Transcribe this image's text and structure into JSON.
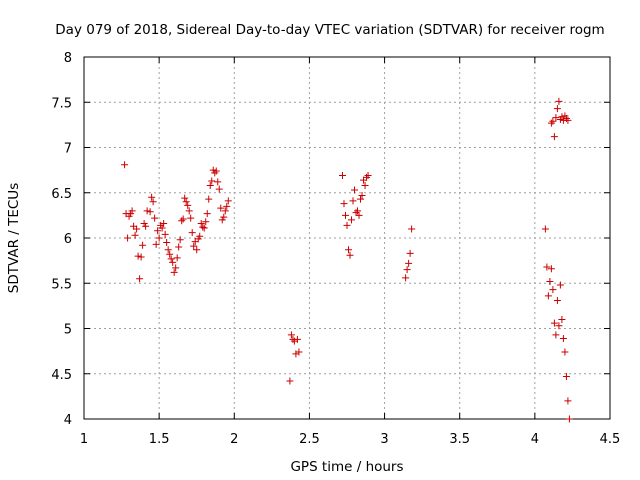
{
  "chart_data": {
    "type": "scatter",
    "title": "Day 079 of 2018, Sidereal Day-to-day VTEC variation (SDTVAR) for receiver rogm",
    "xlabel": "GPS time / hours",
    "ylabel": "SDTVAR / TECUs",
    "xlim": [
      1,
      4.5
    ],
    "ylim": [
      4,
      8
    ],
    "xticks": [
      1,
      1.5,
      2,
      2.5,
      3,
      3.5,
      4,
      4.5
    ],
    "xtick_labels": [
      "1",
      "1.5",
      "2",
      "2.5",
      "3",
      "3.5",
      "4",
      "4.5"
    ],
    "yticks": [
      4,
      4.5,
      5,
      5.5,
      6,
      6.5,
      7,
      7.5,
      8
    ],
    "ytick_labels": [
      "4",
      "4.5",
      "5",
      "5.5",
      "6",
      "6.5",
      "7",
      "7.5",
      "8"
    ],
    "grid": true,
    "marker": "+",
    "marker_color": "#cc0000",
    "series": [
      {
        "name": "SDTVAR",
        "x": [
          1.27,
          1.28,
          1.29,
          1.3,
          1.31,
          1.32,
          1.33,
          1.34,
          1.35,
          1.36,
          1.37,
          1.38,
          1.39,
          1.4,
          1.41,
          1.42,
          1.44,
          1.45,
          1.46,
          1.47,
          1.48,
          1.49,
          1.5,
          1.51,
          1.52,
          1.53,
          1.54,
          1.55,
          1.56,
          1.57,
          1.58,
          1.59,
          1.6,
          1.61,
          1.62,
          1.63,
          1.64,
          1.65,
          1.66,
          1.67,
          1.68,
          1.69,
          1.7,
          1.71,
          1.72,
          1.73,
          1.74,
          1.75,
          1.76,
          1.77,
          1.78,
          1.79,
          1.8,
          1.81,
          1.82,
          1.83,
          1.84,
          1.85,
          1.86,
          1.87,
          1.88,
          1.89,
          1.9,
          1.91,
          1.92,
          1.93,
          1.94,
          1.95,
          1.96,
          2.37,
          2.38,
          2.39,
          2.4,
          2.41,
          2.42,
          2.43,
          2.72,
          2.73,
          2.74,
          2.75,
          2.76,
          2.77,
          2.78,
          2.79,
          2.8,
          2.81,
          2.82,
          2.83,
          2.84,
          2.85,
          2.86,
          2.87,
          2.88,
          2.89,
          3.14,
          3.15,
          3.16,
          3.17,
          3.18,
          4.07,
          4.08,
          4.09,
          4.1,
          4.11,
          4.12,
          4.13,
          4.14,
          4.15,
          4.16,
          4.17,
          4.18,
          4.19,
          4.2,
          4.21,
          4.22,
          4.23,
          4.11,
          4.12,
          4.13,
          4.14,
          4.15,
          4.16,
          4.17,
          4.18,
          4.19,
          4.2,
          4.21,
          4.22
        ],
        "y": [
          6.81,
          6.27,
          6.0,
          6.24,
          6.27,
          6.3,
          6.13,
          6.03,
          6.1,
          5.8,
          5.55,
          5.79,
          5.92,
          6.16,
          6.13,
          6.3,
          6.29,
          6.45,
          6.4,
          6.22,
          5.93,
          6.08,
          6.0,
          6.14,
          6.11,
          6.16,
          6.04,
          5.95,
          5.87,
          5.82,
          5.77,
          5.73,
          5.62,
          5.67,
          5.78,
          5.9,
          5.98,
          6.19,
          6.21,
          6.44,
          6.4,
          6.36,
          6.3,
          6.22,
          6.06,
          5.91,
          5.96,
          5.87,
          5.99,
          6.02,
          6.16,
          6.12,
          6.11,
          6.18,
          6.27,
          6.43,
          6.58,
          6.63,
          6.75,
          6.72,
          6.74,
          6.62,
          6.54,
          6.33,
          6.2,
          6.23,
          6.3,
          6.35,
          6.41,
          4.42,
          4.93,
          4.88,
          4.86,
          4.72,
          4.88,
          4.74,
          6.69,
          6.38,
          6.25,
          6.14,
          5.87,
          5.81,
          6.2,
          6.41,
          6.53,
          6.28,
          6.3,
          6.25,
          6.43,
          6.47,
          6.64,
          6.58,
          6.67,
          6.69,
          5.56,
          5.65,
          5.72,
          5.83,
          6.1,
          6.1,
          5.68,
          5.36,
          5.52,
          5.66,
          5.43,
          5.06,
          4.93,
          5.31,
          5.03,
          5.48,
          5.1,
          4.89,
          4.74,
          4.47,
          4.2,
          4.0,
          7.27,
          7.29,
          7.12,
          7.33,
          7.43,
          7.51,
          7.31,
          7.34,
          7.3,
          7.35,
          7.32,
          7.3
        ]
      }
    ]
  }
}
